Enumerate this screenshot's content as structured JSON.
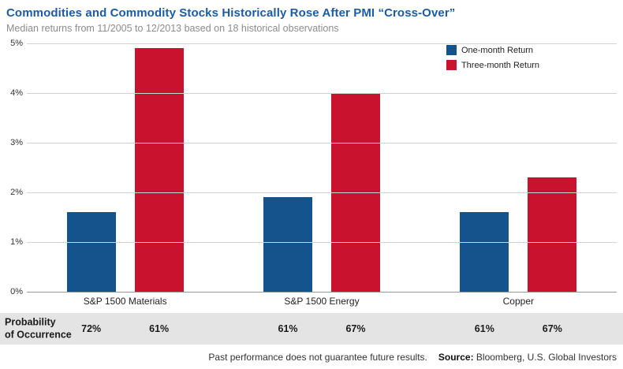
{
  "header": {
    "title": "Commodities and Commodity Stocks Historically Rose After PMI “Cross-Over”",
    "subtitle": "Median returns from 11/2005 to 12/2013 based on 18 historical observations"
  },
  "chart_data": {
    "type": "bar",
    "categories": [
      "S&P 1500 Materials",
      "S&P 1500 Energy",
      "Copper"
    ],
    "series": [
      {
        "name": "One-month Return",
        "color": "#15538c",
        "values": [
          1.6,
          1.9,
          1.6
        ]
      },
      {
        "name": "Three-month Return",
        "color": "#c8122e",
        "values": [
          4.9,
          4.0,
          2.3
        ]
      }
    ],
    "title": "Commodities and Commodity Stocks Historically Rose After PMI “Cross-Over”",
    "subtitle": "Median returns from 11/2005 to 12/2013 based on 18 historical observations",
    "xlabel": "",
    "ylabel": "",
    "ylim": [
      0,
      5
    ],
    "yticks": [
      "0%",
      "1%",
      "2%",
      "3%",
      "4%",
      "5%"
    ],
    "grid": true,
    "legend_position": "top-right"
  },
  "probability": {
    "label": "Probability\nof Occurrence",
    "groups": [
      [
        "72%",
        "61%"
      ],
      [
        "61%",
        "67%"
      ],
      [
        "61%",
        "67%"
      ]
    ]
  },
  "footer": {
    "disclaimer": "Past performance does not guarantee future results.",
    "source_label": "Source:",
    "source_text": " Bloomberg, U.S. Global Investors"
  }
}
